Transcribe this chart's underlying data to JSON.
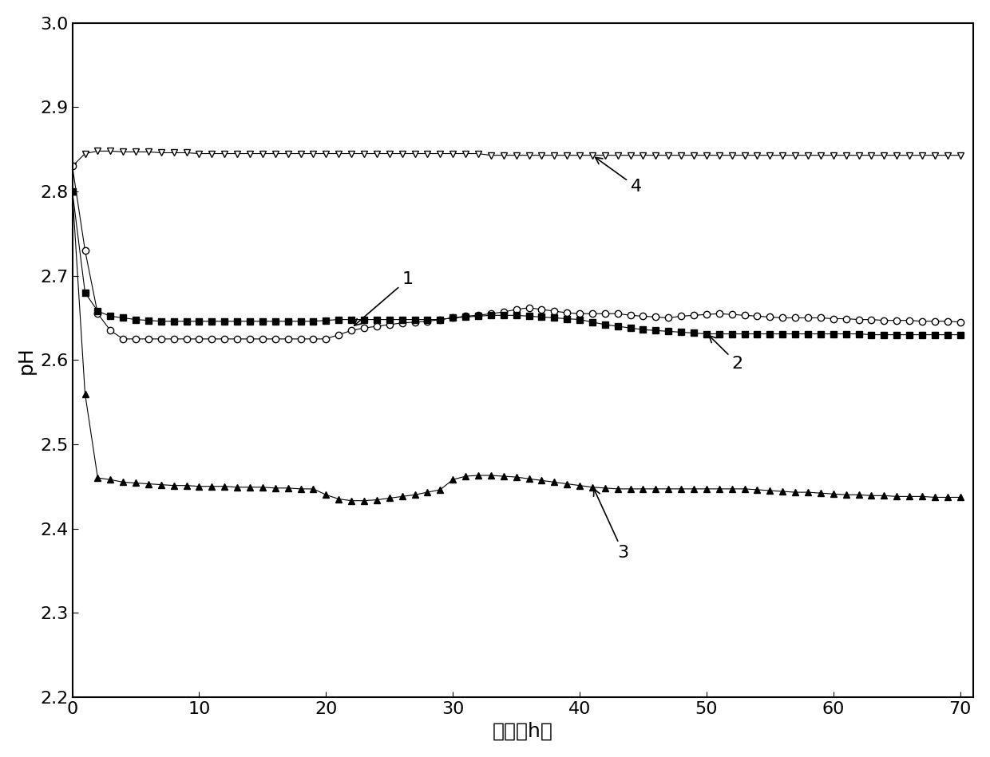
{
  "xlabel": "时间（h）",
  "ylabel": "pH",
  "xlim": [
    0,
    71
  ],
  "ylim": [
    2.2,
    3.0
  ],
  "yticks": [
    2.2,
    2.3,
    2.4,
    2.5,
    2.6,
    2.7,
    2.8,
    2.9,
    3.0
  ],
  "xticks": [
    0,
    10,
    20,
    30,
    40,
    50,
    60,
    70
  ],
  "background_color": "#ffffff",
  "series": {
    "1": {
      "marker": "o",
      "facecolor": "white",
      "x": [
        0,
        1,
        2,
        3,
        4,
        5,
        6,
        7,
        8,
        9,
        10,
        11,
        12,
        13,
        14,
        15,
        16,
        17,
        18,
        19,
        20,
        21,
        22,
        23,
        24,
        25,
        26,
        27,
        28,
        29,
        30,
        31,
        32,
        33,
        34,
        35,
        36,
        37,
        38,
        39,
        40,
        41,
        42,
        43,
        44,
        45,
        46,
        47,
        48,
        49,
        50,
        51,
        52,
        53,
        54,
        55,
        56,
        57,
        58,
        59,
        60,
        61,
        62,
        63,
        64,
        65,
        66,
        67,
        68,
        69,
        70
      ],
      "y": [
        2.83,
        2.73,
        2.655,
        2.635,
        2.625,
        2.625,
        2.625,
        2.625,
        2.625,
        2.625,
        2.625,
        2.625,
        2.625,
        2.625,
        2.625,
        2.625,
        2.625,
        2.625,
        2.625,
        2.625,
        2.625,
        2.63,
        2.635,
        2.638,
        2.64,
        2.642,
        2.644,
        2.645,
        2.646,
        2.648,
        2.65,
        2.652,
        2.653,
        2.655,
        2.657,
        2.66,
        2.662,
        2.66,
        2.658,
        2.656,
        2.655,
        2.655,
        2.655,
        2.655,
        2.653,
        2.652,
        2.651,
        2.65,
        2.652,
        2.653,
        2.654,
        2.655,
        2.654,
        2.653,
        2.652,
        2.651,
        2.65,
        2.65,
        2.65,
        2.65,
        2.649,
        2.649,
        2.648,
        2.648,
        2.647,
        2.647,
        2.647,
        2.646,
        2.646,
        2.646,
        2.645
      ]
    },
    "2": {
      "marker": "s",
      "facecolor": "#000000",
      "x": [
        0,
        1,
        2,
        3,
        4,
        5,
        6,
        7,
        8,
        9,
        10,
        11,
        12,
        13,
        14,
        15,
        16,
        17,
        18,
        19,
        20,
        21,
        22,
        23,
        24,
        25,
        26,
        27,
        28,
        29,
        30,
        31,
        32,
        33,
        34,
        35,
        36,
        37,
        38,
        39,
        40,
        41,
        42,
        43,
        44,
        45,
        46,
        47,
        48,
        49,
        50,
        51,
        52,
        53,
        54,
        55,
        56,
        57,
        58,
        59,
        60,
        61,
        62,
        63,
        64,
        65,
        66,
        67,
        68,
        69,
        70
      ],
      "y": [
        2.8,
        2.68,
        2.658,
        2.652,
        2.65,
        2.648,
        2.647,
        2.646,
        2.646,
        2.646,
        2.646,
        2.646,
        2.646,
        2.646,
        2.646,
        2.646,
        2.646,
        2.646,
        2.646,
        2.646,
        2.647,
        2.648,
        2.648,
        2.648,
        2.648,
        2.648,
        2.648,
        2.648,
        2.648,
        2.648,
        2.65,
        2.651,
        2.652,
        2.653,
        2.653,
        2.653,
        2.652,
        2.651,
        2.65,
        2.649,
        2.648,
        2.645,
        2.642,
        2.64,
        2.638,
        2.636,
        2.635,
        2.634,
        2.633,
        2.632,
        2.631,
        2.631,
        2.631,
        2.631,
        2.631,
        2.631,
        2.631,
        2.631,
        2.631,
        2.631,
        2.631,
        2.631,
        2.631,
        2.63,
        2.63,
        2.63,
        2.63,
        2.63,
        2.63,
        2.63,
        2.63
      ]
    },
    "3": {
      "marker": "^",
      "facecolor": "#000000",
      "x": [
        0,
        1,
        2,
        3,
        4,
        5,
        6,
        7,
        8,
        9,
        10,
        11,
        12,
        13,
        14,
        15,
        16,
        17,
        18,
        19,
        20,
        21,
        22,
        23,
        24,
        25,
        26,
        27,
        28,
        29,
        30,
        31,
        32,
        33,
        34,
        35,
        36,
        37,
        38,
        39,
        40,
        41,
        42,
        43,
        44,
        45,
        46,
        47,
        48,
        49,
        50,
        51,
        52,
        53,
        54,
        55,
        56,
        57,
        58,
        59,
        60,
        61,
        62,
        63,
        64,
        65,
        66,
        67,
        68,
        69,
        70
      ],
      "y": [
        2.8,
        2.56,
        2.46,
        2.458,
        2.455,
        2.454,
        2.453,
        2.452,
        2.451,
        2.451,
        2.45,
        2.45,
        2.45,
        2.449,
        2.449,
        2.449,
        2.448,
        2.448,
        2.447,
        2.447,
        2.44,
        2.435,
        2.433,
        2.433,
        2.434,
        2.436,
        2.438,
        2.44,
        2.443,
        2.446,
        2.458,
        2.462,
        2.463,
        2.463,
        2.462,
        2.461,
        2.459,
        2.457,
        2.455,
        2.453,
        2.451,
        2.449,
        2.448,
        2.447,
        2.447,
        2.447,
        2.447,
        2.447,
        2.447,
        2.447,
        2.447,
        2.447,
        2.447,
        2.447,
        2.446,
        2.445,
        2.444,
        2.443,
        2.443,
        2.442,
        2.441,
        2.44,
        2.44,
        2.439,
        2.439,
        2.438,
        2.438,
        2.438,
        2.437,
        2.437,
        2.437
      ]
    },
    "4": {
      "marker": "v",
      "facecolor": "white",
      "x": [
        0,
        1,
        2,
        3,
        4,
        5,
        6,
        7,
        8,
        9,
        10,
        11,
        12,
        13,
        14,
        15,
        16,
        17,
        18,
        19,
        20,
        21,
        22,
        23,
        24,
        25,
        26,
        27,
        28,
        29,
        30,
        31,
        32,
        33,
        34,
        35,
        36,
        37,
        38,
        39,
        40,
        41,
        42,
        43,
        44,
        45,
        46,
        47,
        48,
        49,
        50,
        51,
        52,
        53,
        54,
        55,
        56,
        57,
        58,
        59,
        60,
        61,
        62,
        63,
        64,
        65,
        66,
        67,
        68,
        69,
        70
      ],
      "y": [
        2.83,
        2.845,
        2.848,
        2.848,
        2.847,
        2.847,
        2.847,
        2.846,
        2.846,
        2.846,
        2.845,
        2.845,
        2.845,
        2.845,
        2.845,
        2.845,
        2.845,
        2.845,
        2.845,
        2.845,
        2.845,
        2.845,
        2.845,
        2.845,
        2.845,
        2.845,
        2.845,
        2.845,
        2.845,
        2.845,
        2.845,
        2.845,
        2.845,
        2.843,
        2.843,
        2.843,
        2.843,
        2.843,
        2.843,
        2.843,
        2.843,
        2.843,
        2.843,
        2.843,
        2.843,
        2.843,
        2.843,
        2.843,
        2.843,
        2.843,
        2.843,
        2.843,
        2.843,
        2.843,
        2.843,
        2.843,
        2.843,
        2.843,
        2.843,
        2.843,
        2.843,
        2.843,
        2.843,
        2.843,
        2.843,
        2.843,
        2.843,
        2.843,
        2.843,
        2.843,
        2.843
      ]
    }
  }
}
